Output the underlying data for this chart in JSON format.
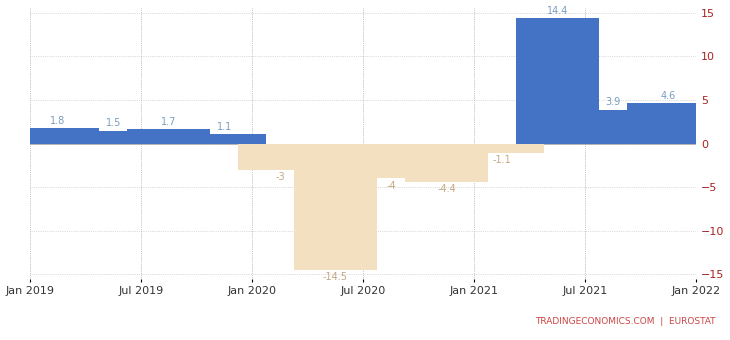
{
  "values": [
    1.8,
    1.5,
    1.7,
    1.1,
    -3.0,
    -14.5,
    -4.0,
    -4.4,
    -1.1,
    14.4,
    3.9,
    4.6
  ],
  "labels": [
    "1.8",
    "1.5",
    "1.7",
    "1.1",
    "-3",
    "-14.5",
    "-4",
    "-4.4",
    "-1.1",
    "14.4",
    "3.9",
    "4.6"
  ],
  "positive_color": "#4472C4",
  "negative_color": "#F2E0C0",
  "background_color": "#ffffff",
  "grid_color": "#bbbbbb",
  "ylim": [
    -15.5,
    15.5
  ],
  "yticks": [
    -15,
    -10,
    -5,
    0,
    5,
    10,
    15
  ],
  "xtick_labels": [
    "Jan 2019",
    "Jul 2019",
    "Jan 2020",
    "Jul 2020",
    "Jan 2021",
    "Jul 2021",
    "Jan 2022"
  ],
  "watermark_text": "TRADINGECONOMICS.COM  |  EUROSTAT",
  "watermark_color": "#cc4444",
  "label_color_positive": "#7a9cbf",
  "label_color_negative": "#c4a882",
  "tick_color_x": "#333333",
  "tick_color_y": "#aa2222",
  "label_fontsize": 7.0,
  "tick_fontsize": 8,
  "watermark_fontsize": 6.5
}
